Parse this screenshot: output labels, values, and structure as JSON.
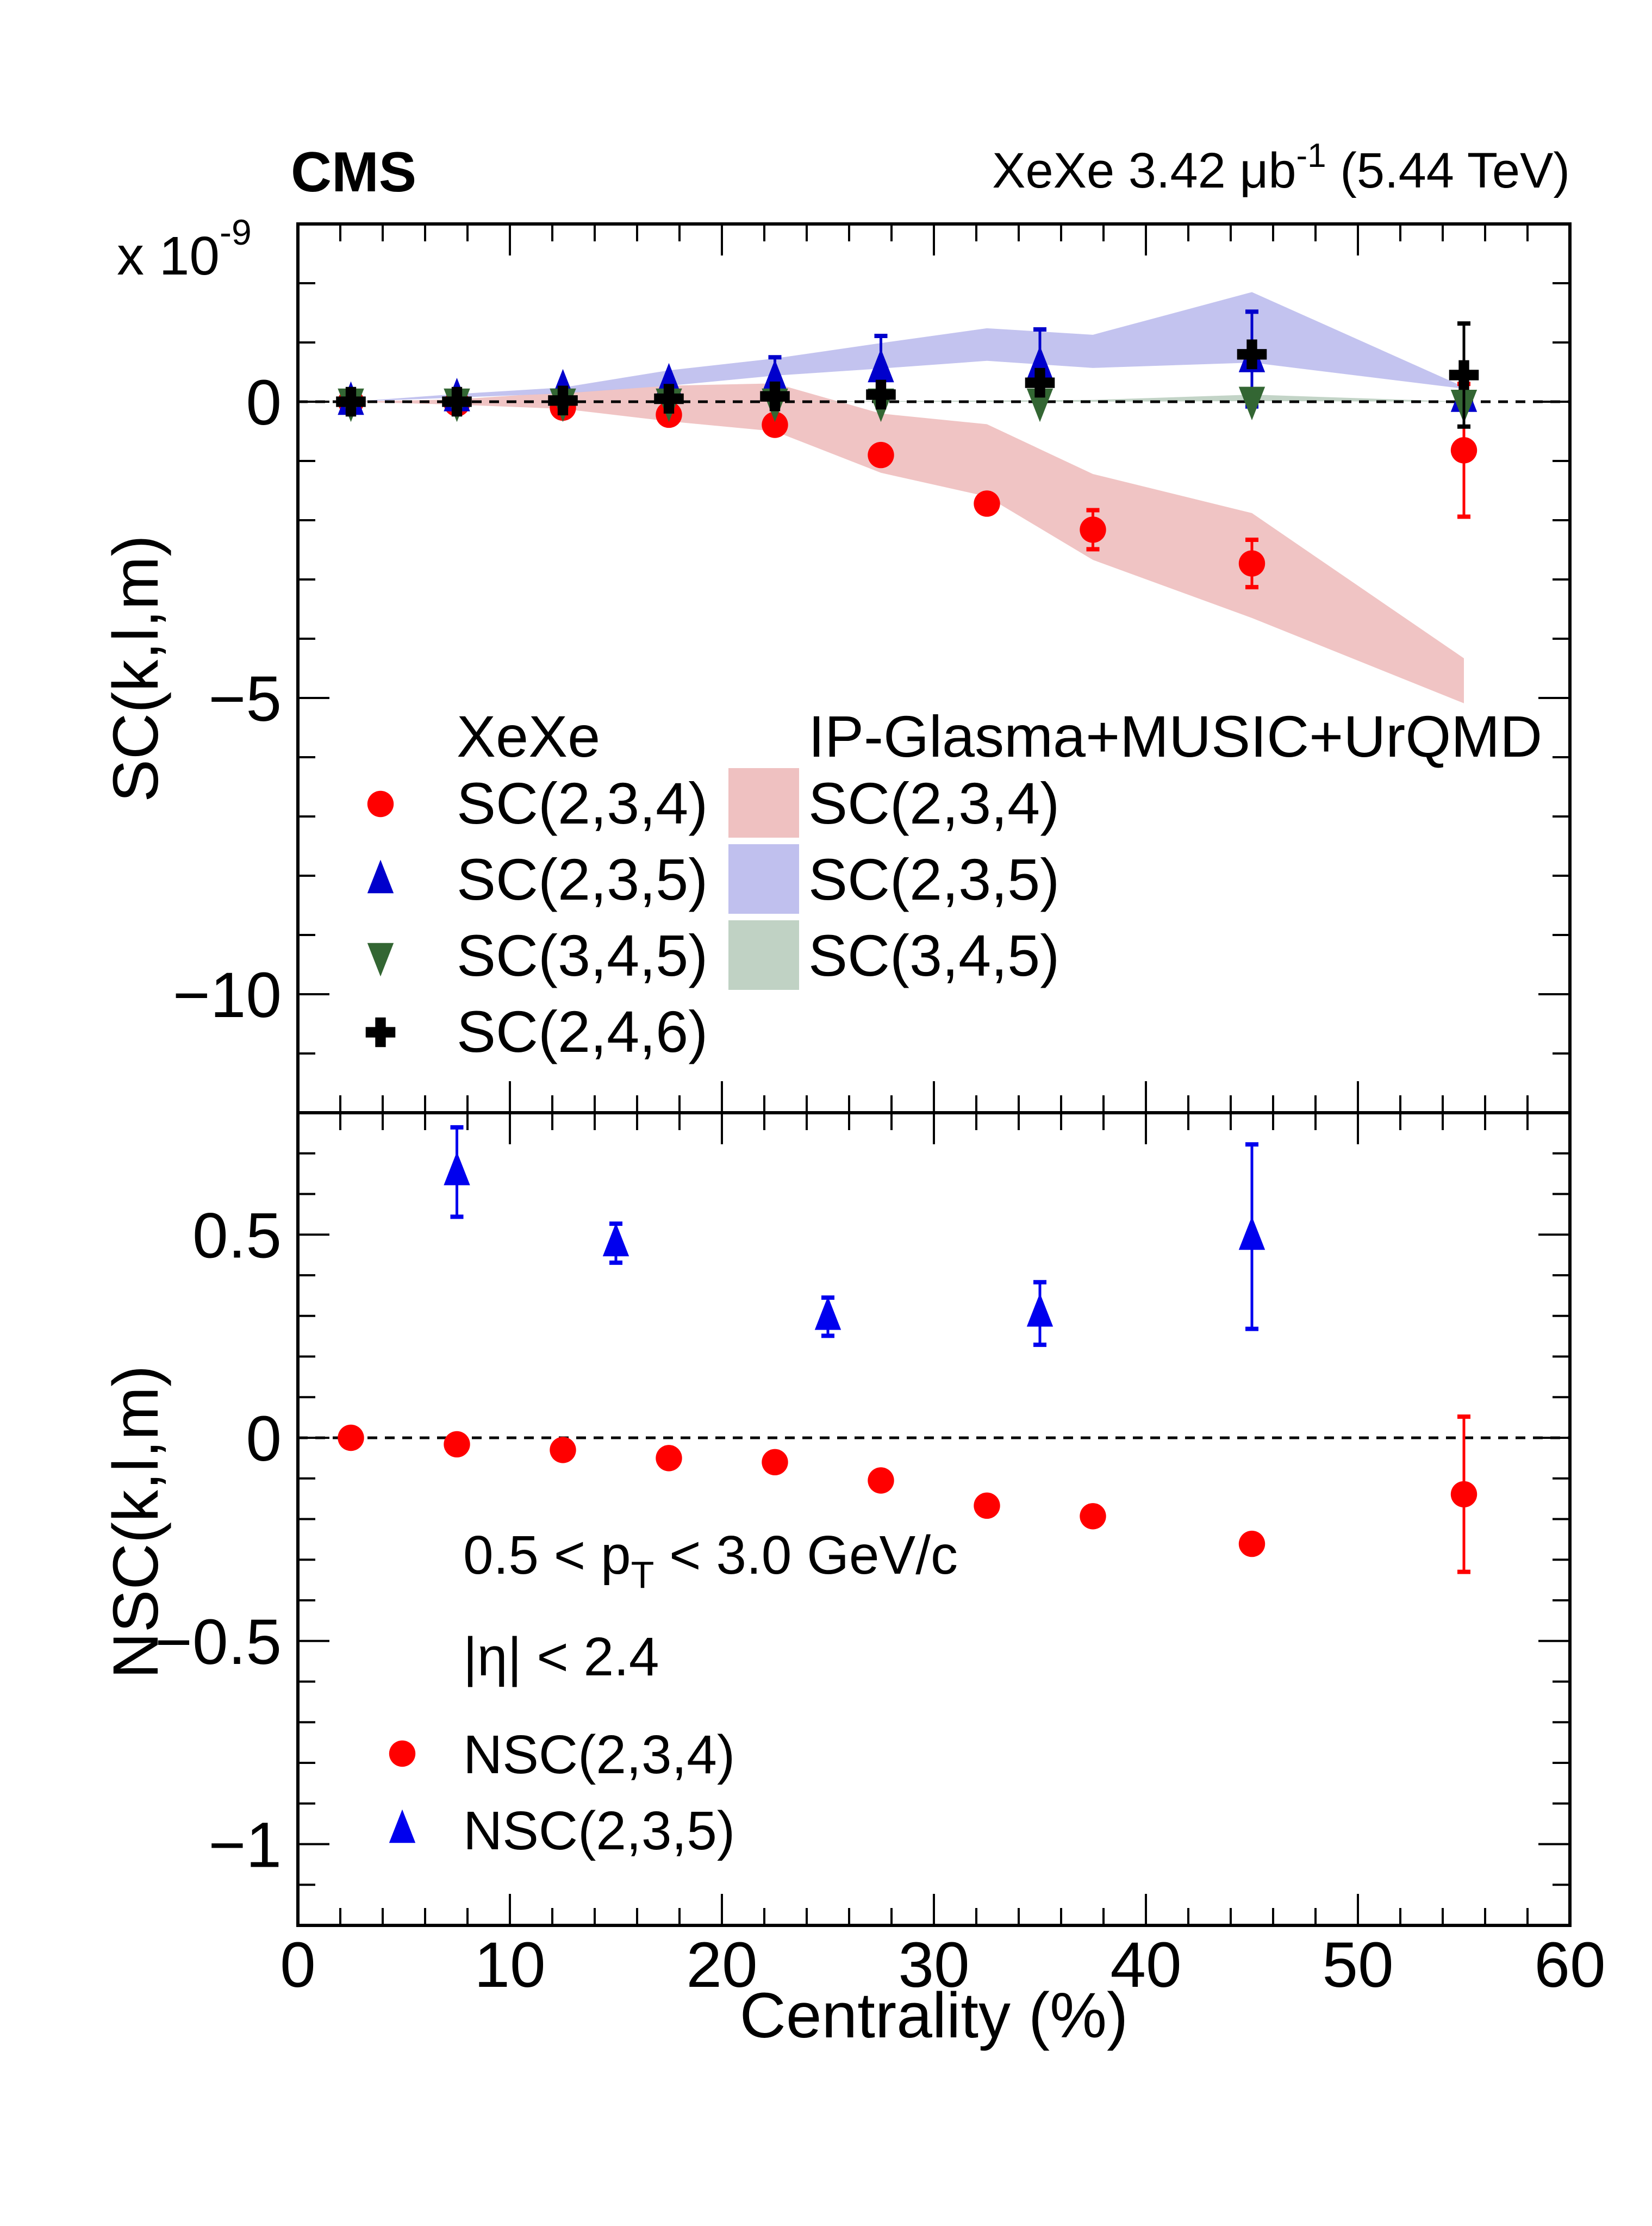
{
  "header": {
    "experiment": "CMS",
    "dataset_prefix": "XeXe 3.42 ",
    "dataset_unit": "μb",
    "dataset_unit_exp": "-1",
    "dataset_suffix": " (5.44 TeV)"
  },
  "chart_data": [
    {
      "panel": "top",
      "type": "scatter",
      "title": "",
      "xlabel": "Centrality (%)",
      "ylabel": "SC(k,l,m)",
      "y_multiplier_base": "x 10",
      "y_multiplier_exp": "-9",
      "xlim": [
        0,
        60
      ],
      "ylim": [
        -12,
        3
      ],
      "x_ticks": [
        0,
        10,
        20,
        30,
        40,
        50,
        60
      ],
      "y_ticks": [
        0,
        -5,
        -10
      ],
      "y_tick_labels": [
        "0",
        "−5",
        "−10"
      ],
      "reference_line": 0,
      "grid": false,
      "legend_placement": "lower-center",
      "legend_data_header": "XeXe",
      "legend_model_header": "IP-Glasma+MUSIC+UrQMD",
      "series": [
        {
          "name": "SC(2,3,4)",
          "marker": "circle",
          "color": "#ff0000",
          "x": [
            2.5,
            7.5,
            12.5,
            17.5,
            22.5,
            27.5,
            32.5,
            37.5,
            45,
            55
          ],
          "y": [
            0.0,
            -0.03,
            -0.1,
            -0.22,
            -0.39,
            -0.9,
            -1.72,
            -2.16,
            -2.73,
            -0.82
          ],
          "yerr": [
            0.02,
            0.02,
            0.03,
            0.04,
            0.05,
            0.08,
            0.1,
            0.33,
            0.4,
            1.12
          ]
        },
        {
          "name": "SC(2,3,5)",
          "marker": "triangle-up",
          "color": "#0000cc",
          "x": [
            2.5,
            7.5,
            12.5,
            17.5,
            22.5,
            27.5,
            35,
            45,
            55
          ],
          "y": [
            0.0,
            0.06,
            0.21,
            0.31,
            0.37,
            0.55,
            0.6,
            0.72,
            0.05
          ],
          "yerr": [
            0.02,
            0.05,
            0.1,
            0.32,
            0.38,
            0.56,
            0.62,
            0.8,
            0.3
          ]
        },
        {
          "name": "SC(3,4,5)",
          "marker": "triangle-down",
          "color": "#336633",
          "x": [
            2.5,
            7.5,
            12.5,
            17.5,
            22.5,
            27.5,
            35,
            45,
            55
          ],
          "y": [
            0.0,
            0.0,
            0.0,
            0.0,
            0.0,
            0.0,
            0.0,
            0.03,
            -0.02
          ],
          "yerr": [
            0.01,
            0.01,
            0.02,
            0.02,
            0.03,
            0.05,
            0.06,
            0.1,
            0.2
          ]
        },
        {
          "name": "SC(2,4,6)",
          "marker": "cross",
          "color": "#000000",
          "x": [
            2.5,
            7.5,
            12.5,
            17.5,
            22.5,
            27.5,
            35,
            45,
            55
          ],
          "y": [
            0.0,
            0.0,
            0.02,
            0.05,
            0.09,
            0.12,
            0.32,
            0.8,
            0.45
          ],
          "yerr": [
            0.02,
            0.02,
            0.03,
            0.05,
            0.06,
            0.1,
            0.15,
            0.25,
            0.87
          ]
        }
      ],
      "bands": [
        {
          "name": "SC(2,3,4)",
          "color": "#efc1c1",
          "x": [
            2.5,
            7.5,
            12.5,
            17.5,
            22.5,
            27.5,
            32.5,
            37.5,
            45,
            55
          ],
          "lower": [
            0.0,
            -0.05,
            -0.12,
            -0.33,
            -0.5,
            -1.2,
            -1.6,
            -2.67,
            -3.65,
            -5.09
          ],
          "upper": [
            0.0,
            0.04,
            0.16,
            0.27,
            0.31,
            -0.2,
            -0.38,
            -1.22,
            -1.88,
            -4.33
          ]
        },
        {
          "name": "SC(2,3,5)",
          "color": "#c0c0ee",
          "x": [
            2.5,
            7.5,
            12.5,
            17.5,
            22.5,
            27.5,
            32.5,
            37.5,
            45,
            55
          ],
          "lower": [
            0.0,
            0.07,
            0.14,
            0.27,
            0.44,
            0.56,
            0.69,
            0.57,
            0.66,
            0.22
          ],
          "upper": [
            0.0,
            0.13,
            0.24,
            0.53,
            0.73,
            0.99,
            1.24,
            1.13,
            1.85,
            0.25
          ]
        },
        {
          "name": "SC(3,4,5)",
          "color": "#c0d2c4",
          "x": [
            2.5,
            7.5,
            12.5,
            17.5,
            22.5,
            27.5,
            32.5,
            37.5,
            45,
            55
          ],
          "lower": [
            0.0,
            0.0,
            0.0,
            0.0,
            0.0,
            0.0,
            0.0,
            0.0,
            0.01,
            0.0
          ],
          "upper": [
            0.0,
            0.0,
            0.0,
            0.0,
            0.0,
            0.01,
            0.02,
            0.03,
            0.12,
            0.0
          ]
        }
      ]
    },
    {
      "panel": "bottom",
      "type": "scatter",
      "title": "",
      "xlabel": "Centrality (%)",
      "ylabel": "NSC(k,l,m)",
      "xlim": [
        0,
        60
      ],
      "ylim": [
        -1.2,
        0.8
      ],
      "x_ticks": [
        0,
        10,
        20,
        30,
        40,
        50,
        60
      ],
      "x_tick_labels": [
        "0",
        "10",
        "20",
        "30",
        "40",
        "50",
        "60"
      ],
      "y_ticks": [
        0.5,
        0,
        -0.5,
        -1
      ],
      "y_tick_labels": [
        "0.5",
        "0",
        "−0.5",
        "−1"
      ],
      "reference_line": 0,
      "grid": false,
      "legend_placement": "lower-left",
      "annotations": [
        "0.5 < p_T < 3.0 GeV/c",
        "|η| < 2.4"
      ],
      "series": [
        {
          "name": "NSC(2,3,4)",
          "marker": "circle",
          "color": "#ff0000",
          "x": [
            2.5,
            7.5,
            12.5,
            17.5,
            22.5,
            27.5,
            32.5,
            37.5,
            45,
            55
          ],
          "y": [
            0.0,
            -0.016,
            -0.03,
            -0.05,
            -0.06,
            -0.105,
            -0.167,
            -0.193,
            -0.261,
            -0.139
          ],
          "yerr": [
            0.003,
            0.004,
            0.005,
            0.006,
            0.008,
            0.01,
            0.012,
            0.015,
            0.045,
            0.191
          ]
        },
        {
          "name": "NSC(2,3,5)",
          "marker": "triangle-up",
          "color": "#0000ee",
          "x": [
            7.5,
            15,
            25,
            35,
            45
          ],
          "y": [
            0.654,
            0.479,
            0.298,
            0.306,
            0.495
          ],
          "yerr": [
            0.11,
            0.048,
            0.047,
            0.077,
            0.227
          ]
        }
      ]
    }
  ],
  "annotations": {
    "pt_prefix": "0.5 < p",
    "pt_sub": "T",
    "pt_suffix": " < 3.0 GeV/c",
    "eta": "|η| < 2.4"
  }
}
